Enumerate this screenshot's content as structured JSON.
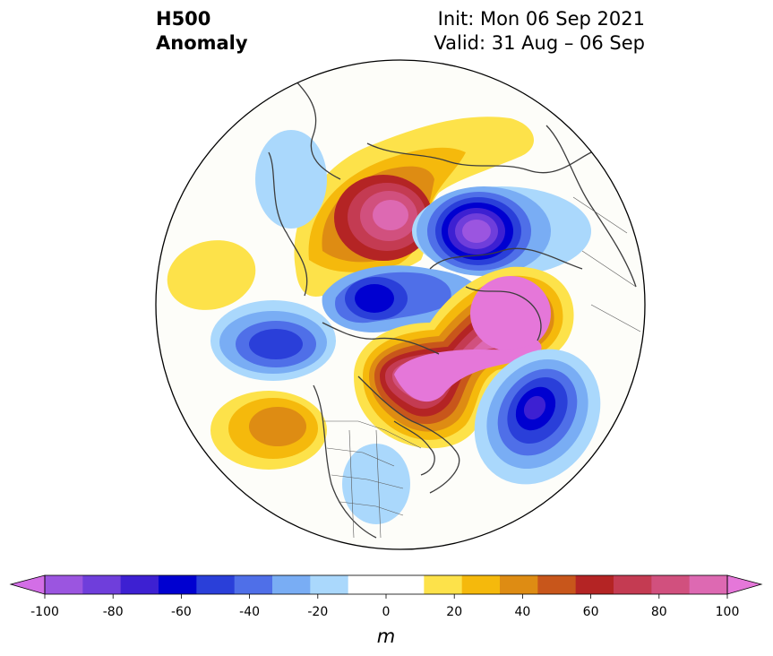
{
  "title": {
    "left_line1": "H500",
    "left_line2": "Anomaly",
    "right_line1": "Init: Mon 06 Sep 2021",
    "right_line2": "Valid: 31 Aug – 06 Sep"
  },
  "colorbar": {
    "units": "m",
    "ticks": [
      "-100",
      "-80",
      "-60",
      "-40",
      "-20",
      "0",
      "20",
      "40",
      "60",
      "80",
      "100"
    ],
    "colors": [
      "#9b55e0",
      "#6f3edb",
      "#3d20d2",
      "#0000d0",
      "#2a3fd9",
      "#4f6fe8",
      "#79adf4",
      "#aad8fc",
      "#ffffff",
      "#ffffff",
      "#fde24a",
      "#f5b90c",
      "#de8c13",
      "#c8561b",
      "#b42424",
      "#c43b52",
      "#d1507e",
      "#dd69b2"
    ],
    "under_color": "#d36ee6",
    "over_color": "#e577d9"
  },
  "map": {
    "projection": "north-polar-stereographic",
    "features": [
      {
        "type": "positive",
        "name": "ridge-arctic-siberia",
        "peak": 80
      },
      {
        "type": "negative",
        "name": "trough-kara-sea",
        "peak": -80
      },
      {
        "type": "negative",
        "name": "trough-beaufort",
        "peak": -60
      },
      {
        "type": "negative",
        "name": "trough-north-pacific",
        "peak": -50
      },
      {
        "type": "positive",
        "name": "ridge-east-pacific",
        "peak": 40
      },
      {
        "type": "positive",
        "name": "ridge-canada-greenland",
        "peak": 100
      },
      {
        "type": "negative",
        "name": "trough-north-atlantic",
        "peak": -60
      },
      {
        "type": "positive",
        "name": "ridge-west-pacific",
        "peak": 10
      },
      {
        "type": "negative",
        "name": "trough-eastern-us",
        "peak": -20
      }
    ]
  }
}
